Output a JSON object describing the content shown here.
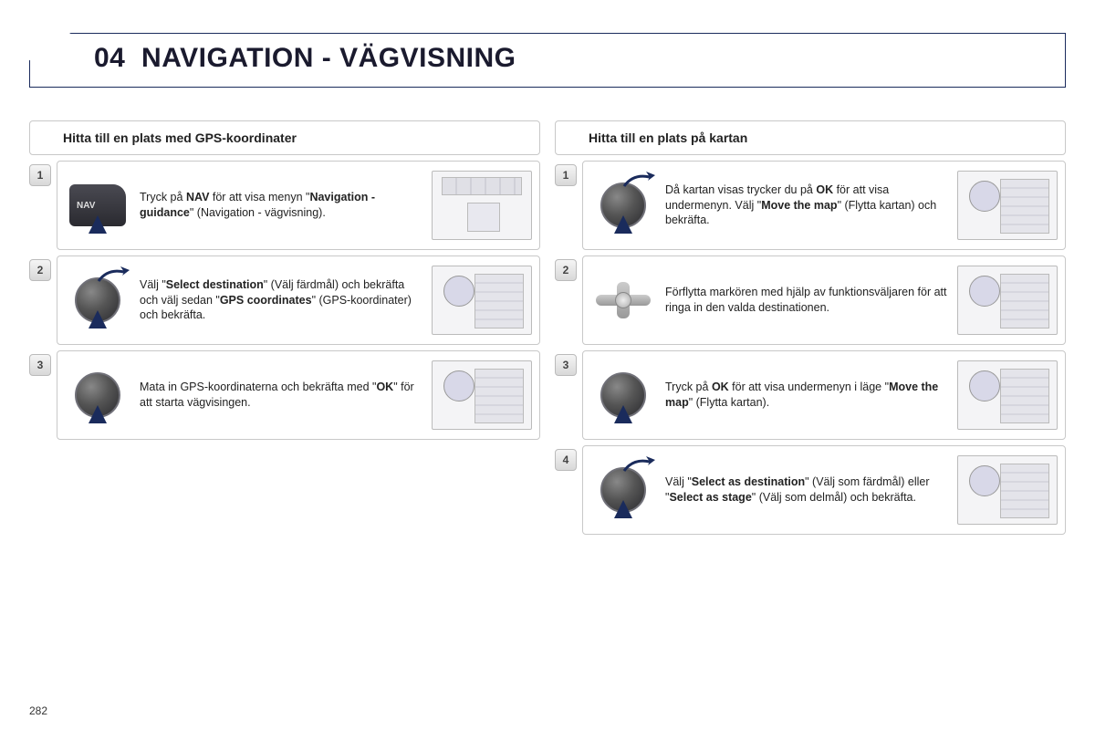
{
  "page_number": "282",
  "header": {
    "section_no": "04",
    "title": "NAVIGATION - VÄGVISNING"
  },
  "left": {
    "heading": "Hitta till en plats med GPS-koordinater",
    "steps": [
      {
        "n": "1",
        "icon": "nav-button",
        "thumb": "b",
        "html": "Tryck på <b>NAV</b> för att visa menyn \"<b>Navigation - guidance</b>\" (Navigation - vägvisning)."
      },
      {
        "n": "2",
        "icon": "knob-curve",
        "thumb": "a",
        "html": "Välj \"<b>Select destination</b>\" (Välj färdmål) och bekräfta och välj sedan \"<b>GPS coordinates</b>\" (GPS-koordinater) och bekräfta."
      },
      {
        "n": "3",
        "icon": "knob",
        "thumb": "a",
        "html": "Mata in GPS-koordinaterna och bekräfta med \"<b>OK</b>\" för att starta vägvisingen."
      }
    ]
  },
  "right": {
    "heading": "Hitta till en plats på kartan",
    "steps": [
      {
        "n": "1",
        "icon": "knob-curve",
        "thumb": "a",
        "html": "Då kartan visas trycker du på <b>OK</b> för att visa undermenyn. Välj \"<b>Move the map</b>\" (Flytta kartan) och bekräfta."
      },
      {
        "n": "2",
        "icon": "dpad",
        "thumb": "a",
        "html": "Förflytta markören med hjälp av funktionsväljaren för att ringa in den valda destinationen."
      },
      {
        "n": "3",
        "icon": "knob",
        "thumb": "a",
        "html": "Tryck på <b>OK</b> för att visa undermenyn i läge \"<b>Move the map</b>\" (Flytta kartan)."
      },
      {
        "n": "4",
        "icon": "knob-curve",
        "thumb": "a",
        "html": "Välj \"<b>Select as destination</b>\" (Välj som färdmål) eller \"<b>Select as stage</b>\" (Välj som delmål) och bekräfta."
      }
    ]
  }
}
